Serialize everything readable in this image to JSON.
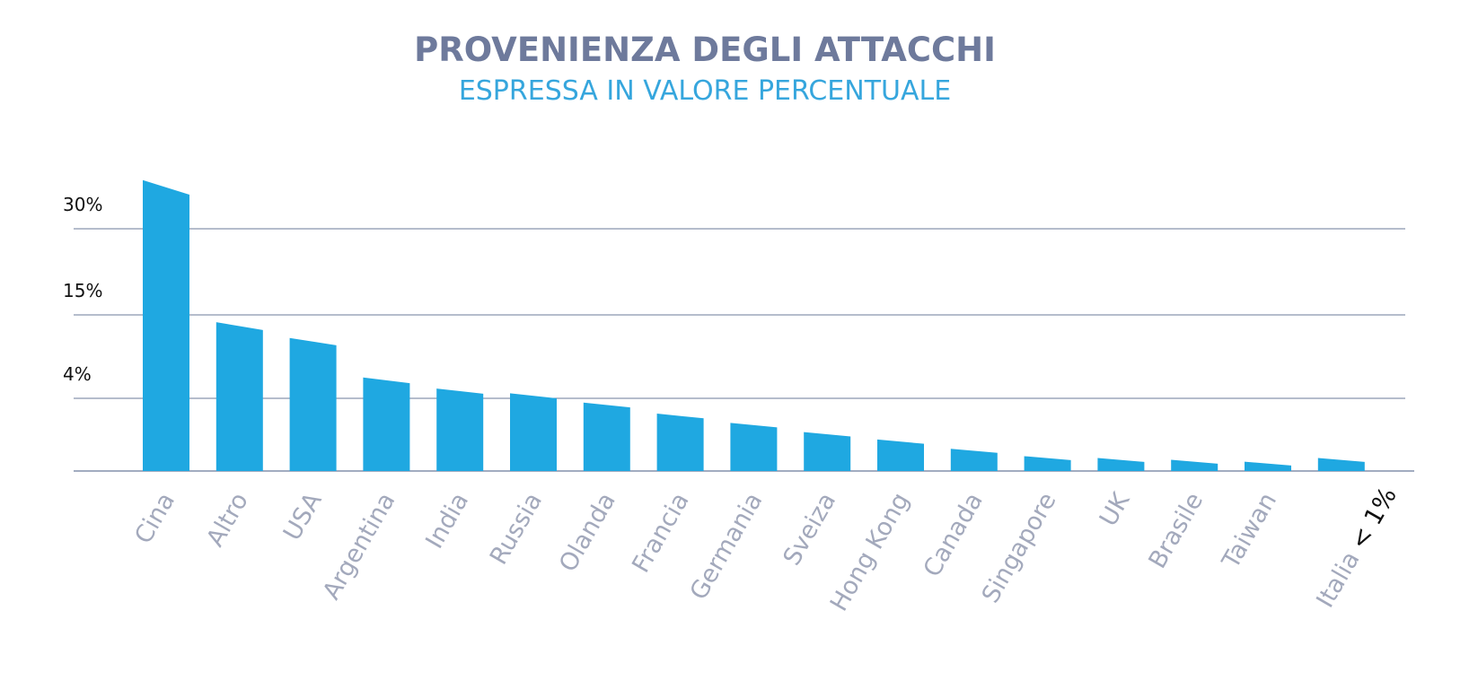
{
  "chart_data": {
    "type": "bar",
    "title": "PROVENIENZA DEGLI ATTACCHI",
    "subtitle": "ESPRESSA IN VALORE PERCENTUALE",
    "categories": [
      "Cina",
      "Altro",
      "USA",
      "Argentina",
      "India",
      "Russia",
      "Olanda",
      "Francia",
      "Germania",
      "Sveiza",
      "Hong Kong",
      "Canada",
      "Singapore",
      "UK",
      "Brasile",
      "Taiwan",
      "Italia"
    ],
    "category_suffix": {
      "Italia": "< 1%"
    },
    "values": [
      34,
      13,
      11,
      6,
      4.6,
      4,
      3.5,
      2.9,
      2.4,
      1.9,
      1.5,
      1,
      0.6,
      0.5,
      0.4,
      0.3,
      0.5
    ],
    "yticks": [
      {
        "value": 4,
        "label": "4%"
      },
      {
        "value": 15,
        "label": "15%"
      },
      {
        "value": 30,
        "label": "30%"
      }
    ],
    "xlabel": "",
    "ylabel": "",
    "y_scale": "non-linear",
    "grid": true,
    "bar_color": "#1fa8e1",
    "grid_color": "#6b7b9a"
  }
}
